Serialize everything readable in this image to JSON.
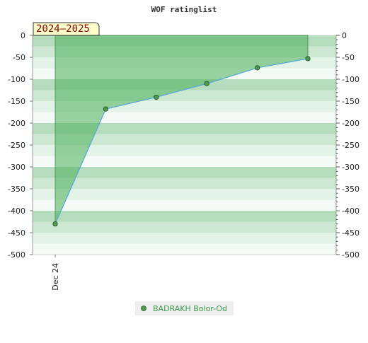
{
  "chart_data": {
    "type": "line",
    "title": "WOF ratinglist",
    "season_label": "2024–2025",
    "categories": [
      "Dec 24",
      "",
      "",
      "",
      "",
      "",
      ""
    ],
    "x": [
      0,
      1,
      2,
      3,
      4,
      5
    ],
    "series": [
      {
        "name": "BADRAKH Bolor-Od",
        "values": [
          -430,
          -168,
          -141,
          -110,
          -74,
          -53
        ]
      }
    ],
    "ylim": [
      -500,
      0
    ],
    "y_ticks": [
      0,
      -50,
      -100,
      -150,
      -200,
      -250,
      -300,
      -350,
      -400,
      -450,
      -500
    ],
    "x_tick_labels": [
      "Dec 24"
    ],
    "grid": true,
    "legend": "bottom-center",
    "colors": {
      "line": "#5aaad8",
      "area": "#4caf5a",
      "marker": "#4a9a50",
      "band_dark": "#b6dcbe",
      "band_mid": "#cde8d2",
      "band_light": "#e4f3e7",
      "band_white": "#f4faf5",
      "season_bg": "#ffffcc",
      "season_text": "#8b0000"
    }
  }
}
